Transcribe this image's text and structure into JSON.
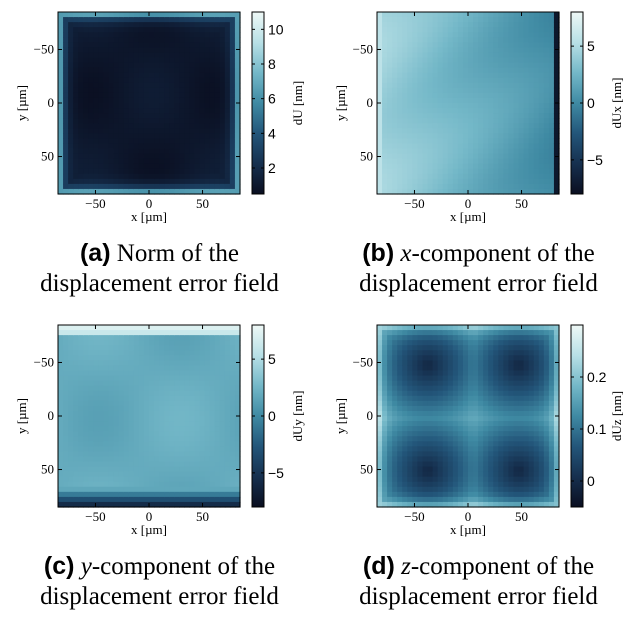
{
  "chart_data": [
    {
      "type": "heatmap",
      "label": "(a)",
      "caption_pre": "",
      "caption_var": "",
      "caption_post": "Norm of the",
      "caption_line2": "displacement error field",
      "xlabel": "x [µm]",
      "ylabel": "y [µm]",
      "cbar_label": "dU [nm]",
      "x_ticks": [
        -50,
        0,
        50
      ],
      "x_tick_labels": [
        "−50",
        "0",
        "50"
      ],
      "y_ticks": [
        -50,
        0,
        50
      ],
      "y_tick_labels": [
        "−50",
        "0",
        "50"
      ],
      "xlim": [
        -85,
        85
      ],
      "ylim": [
        -85,
        85
      ],
      "clim": [
        0.5,
        11
      ],
      "cbar_ticks": [
        2,
        4,
        6,
        8,
        10
      ],
      "cbar_tick_labels": [
        "2",
        "4",
        "6",
        "8",
        "10"
      ],
      "pattern": "edge_high"
    },
    {
      "type": "heatmap",
      "label": "(b)",
      "caption_pre": "",
      "caption_var": "x",
      "caption_post": "-component of the",
      "caption_line2": "displacement error field",
      "xlabel": "x [µm]",
      "ylabel": "y [µm]",
      "cbar_label": "dUx [nm]",
      "x_ticks": [
        -50,
        0,
        50
      ],
      "x_tick_labels": [
        "−50",
        "0",
        "50"
      ],
      "y_ticks": [
        -50,
        0,
        50
      ],
      "y_tick_labels": [
        "−50",
        "0",
        "50"
      ],
      "xlim": [
        -85,
        85
      ],
      "ylim": [
        -85,
        85
      ],
      "clim": [
        -8,
        8
      ],
      "cbar_ticks": [
        -5,
        0,
        5
      ],
      "cbar_tick_labels": [
        "−5",
        "0",
        "5"
      ],
      "pattern": "x_gradient"
    },
    {
      "type": "heatmap",
      "label": "(c)",
      "caption_pre": "",
      "caption_var": "y",
      "caption_post": "-component of the",
      "caption_line2": "displacement error field",
      "xlabel": "x [µm]",
      "ylabel": "y [µm]",
      "cbar_label": "dUy [nm]",
      "x_ticks": [
        -50,
        0,
        50
      ],
      "x_tick_labels": [
        "−50",
        "0",
        "50"
      ],
      "y_ticks": [
        -50,
        0,
        50
      ],
      "y_tick_labels": [
        "−50",
        "0",
        "50"
      ],
      "xlim": [
        -85,
        85
      ],
      "ylim": [
        -85,
        85
      ],
      "clim": [
        -8,
        8
      ],
      "cbar_ticks": [
        -5,
        0,
        5
      ],
      "cbar_tick_labels": [
        "−5",
        "0",
        "5"
      ],
      "pattern": "y_gradient"
    },
    {
      "type": "heatmap",
      "label": "(d)",
      "caption_pre": "",
      "caption_var": "z",
      "caption_post": "-component of the",
      "caption_line2": "displacement error field",
      "xlabel": "x [µm]",
      "ylabel": "y [µm]",
      "cbar_label": "dUz [nm]",
      "x_ticks": [
        -50,
        0,
        50
      ],
      "x_tick_labels": [
        "−50",
        "0",
        "50"
      ],
      "y_ticks": [
        -50,
        0,
        50
      ],
      "y_tick_labels": [
        "−50",
        "0",
        "50"
      ],
      "xlim": [
        -85,
        85
      ],
      "ylim": [
        -85,
        85
      ],
      "clim": [
        -0.05,
        0.3
      ],
      "cbar_ticks": [
        0,
        0.1,
        0.2
      ],
      "cbar_tick_labels": [
        "0",
        "0.1",
        "0.2"
      ],
      "pattern": "saddle"
    }
  ],
  "colormap": [
    "#0a0e20",
    "#16304f",
    "#23567a",
    "#3f8aa3",
    "#74b8c8",
    "#b8e0e6",
    "#eef8f6"
  ]
}
